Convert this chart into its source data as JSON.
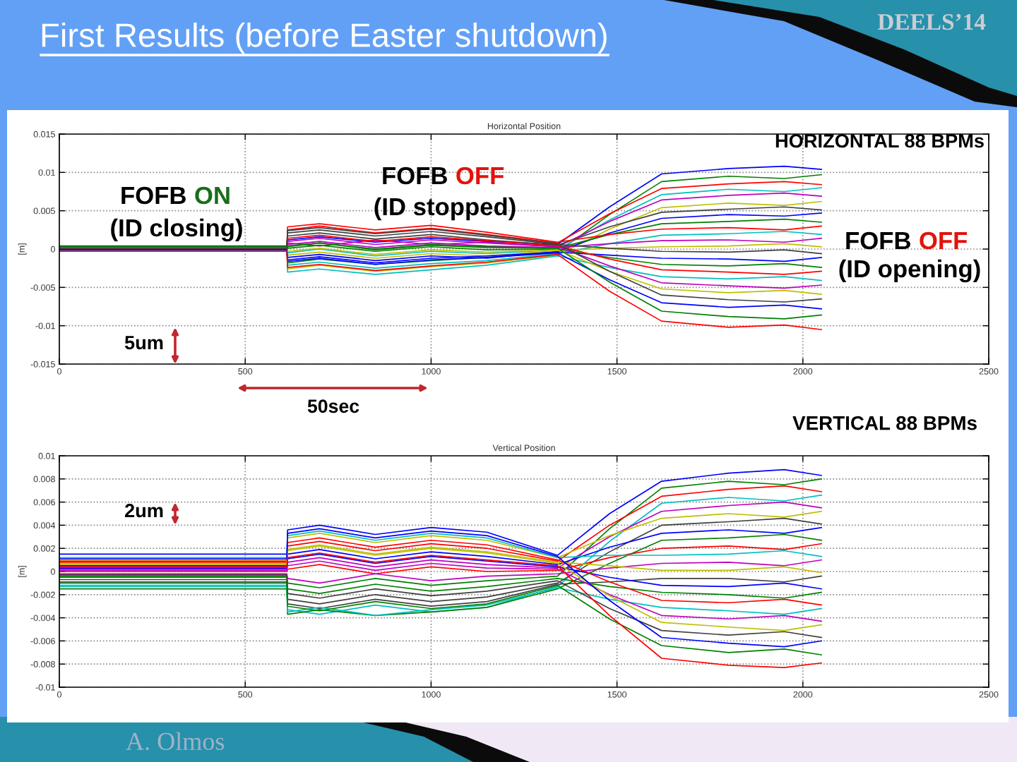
{
  "chart_data": [
    {
      "type": "line",
      "title": "Horizontal Position",
      "ylabel": "[m]",
      "xlim": [
        0,
        2500
      ],
      "ylim": [
        -0.015,
        0.015
      ],
      "xticks": [
        0,
        500,
        1000,
        1500,
        2000,
        2500
      ],
      "yticks": [
        -0.015,
        -0.01,
        -0.005,
        0,
        0.005,
        0.01,
        0.015
      ],
      "grid": true,
      "annotations": [
        "First Results (before Easter shutdown)",
        "DEELS’14",
        "HORIZONTAL 88 BPMs",
        "FOFB",
        "ON",
        "(ID closing)",
        "FOFB",
        "OFF",
        "(ID stopped)",
        "FOFB",
        "OFF",
        "(ID opening)",
        "5um",
        "50sec"
      ],
      "x": [
        0,
        612,
        614,
        700,
        850,
        1000,
        1150,
        1340,
        1480,
        1620,
        1800,
        1950,
        2050
      ],
      "series": [
        {
          "color": "#0000ff",
          "values": [
            0.0003,
            0.0003,
            0.0012,
            0.0016,
            0.0009,
            0.0014,
            0.001,
            0.0006,
            0.0055,
            0.0098,
            0.0105,
            0.0108,
            0.0104
          ]
        },
        {
          "color": "#008000",
          "values": [
            -0.0002,
            -0.0002,
            -0.0018,
            -0.0013,
            -0.002,
            -0.0015,
            -0.0011,
            -0.0004,
            0.0045,
            0.0088,
            0.0095,
            0.0092,
            0.0097
          ]
        },
        {
          "color": "#ff0000",
          "values": [
            0.0001,
            0.0001,
            0.0025,
            0.003,
            0.0021,
            0.0027,
            0.0019,
            0.0008,
            0.0046,
            0.0079,
            0.0085,
            0.0088,
            0.0084
          ]
        },
        {
          "color": "#00bfbf",
          "values": [
            -0.0001,
            -0.0001,
            -0.0005,
            0.0,
            -0.0009,
            -0.0003,
            -0.0006,
            -0.0001,
            0.0038,
            0.0071,
            0.0078,
            0.0075,
            0.008
          ]
        },
        {
          "color": "#bf00bf",
          "values": [
            0.0002,
            0.0002,
            0.0008,
            0.0004,
            0.0012,
            0.0006,
            0.0009,
            0.0003,
            0.0036,
            0.0064,
            0.007,
            0.0073,
            0.0069
          ]
        },
        {
          "color": "#bfbf00",
          "values": [
            0.0,
            0.0,
            -0.0026,
            -0.0021,
            -0.0029,
            -0.0023,
            -0.0018,
            -0.0008,
            0.0026,
            0.0054,
            0.006,
            0.0057,
            0.0062
          ]
        },
        {
          "color": "#404040",
          "values": [
            0.0004,
            0.0004,
            0.0017,
            0.0021,
            0.0013,
            0.0019,
            0.0012,
            0.0005,
            0.0029,
            0.0048,
            0.0052,
            0.0055,
            0.0051
          ]
        },
        {
          "color": "#0000ff",
          "values": [
            -0.0003,
            -0.0003,
            -0.0011,
            -0.0007,
            -0.0015,
            -0.0009,
            -0.0012,
            -0.0003,
            0.0021,
            0.004,
            0.0045,
            0.0043,
            0.0047
          ]
        },
        {
          "color": "#008000",
          "values": [
            0.0001,
            0.0001,
            0.0003,
            0.0008,
            -0.0001,
            0.0005,
            0.0002,
            0.0001,
            0.0019,
            0.0033,
            0.0036,
            0.0039,
            0.0035
          ]
        },
        {
          "color": "#ff0000",
          "values": [
            -0.0001,
            -0.0001,
            0.0029,
            0.0033,
            0.0025,
            0.0031,
            0.0022,
            0.0009,
            0.0019,
            0.0026,
            0.0028,
            0.0025,
            0.003
          ]
        },
        {
          "color": "#00bfbf",
          "values": [
            0.0002,
            0.0002,
            -0.0021,
            -0.0017,
            -0.0025,
            -0.0019,
            -0.0015,
            -0.0006,
            0.0007,
            0.0018,
            0.002,
            0.0023,
            0.0019
          ]
        },
        {
          "color": "#bf00bf",
          "values": [
            -0.0002,
            -0.0002,
            0.0006,
            0.001,
            0.0002,
            0.0008,
            0.0004,
            0.0002,
            0.0007,
            0.0011,
            0.0012,
            0.0009,
            0.0014
          ]
        },
        {
          "color": "#bfbf00",
          "values": [
            0.0,
            0.0,
            -0.0008,
            -0.0004,
            -0.0012,
            -0.0006,
            -0.0009,
            -0.0002,
            0.0001,
            0.0003,
            0.0004,
            0.0007,
            0.0003
          ]
        },
        {
          "color": "#404040",
          "values": [
            0.0003,
            0.0003,
            0.0021,
            0.0025,
            0.0017,
            0.0023,
            0.0016,
            0.0006,
            0.0001,
            -0.0003,
            -0.0004,
            -0.0001,
            -0.0006
          ]
        },
        {
          "color": "#0000ff",
          "values": [
            -0.0001,
            -0.0001,
            -0.0014,
            -0.001,
            -0.0018,
            -0.0012,
            -0.0009,
            -0.0004,
            -0.0008,
            -0.0012,
            -0.0013,
            -0.0016,
            -0.0011
          ]
        },
        {
          "color": "#008000",
          "values": [
            0.0001,
            0.0001,
            0.0001,
            0.0005,
            -0.0003,
            0.0003,
            -0.0001,
            0.0,
            -0.0011,
            -0.002,
            -0.0022,
            -0.0019,
            -0.0024
          ]
        },
        {
          "color": "#ff0000",
          "values": [
            -0.0003,
            -0.0003,
            0.0014,
            0.0018,
            0.001,
            0.0016,
            0.0011,
            0.0004,
            -0.0013,
            -0.0027,
            -0.003,
            -0.0033,
            -0.0029
          ]
        },
        {
          "color": "#00bfbf",
          "values": [
            0.0002,
            0.0002,
            -0.003,
            -0.0026,
            -0.0033,
            -0.0027,
            -0.0021,
            -0.0009,
            -0.0024,
            -0.0036,
            -0.0039,
            -0.0036,
            -0.0041
          ]
        },
        {
          "color": "#bf00bf",
          "values": [
            0.0,
            0.0,
            0.001,
            0.0014,
            0.0006,
            0.0012,
            0.0008,
            0.0003,
            -0.0022,
            -0.0044,
            -0.0048,
            -0.0051,
            -0.0047
          ]
        },
        {
          "color": "#bfbf00",
          "values": [
            -0.0002,
            -0.0002,
            -0.0003,
            0.0001,
            -0.0007,
            -0.0001,
            -0.0004,
            -0.0001,
            -0.0029,
            -0.0052,
            -0.0057,
            -0.0054,
            -0.0059
          ]
        },
        {
          "color": "#404040",
          "values": [
            0.0001,
            0.0001,
            0.0024,
            0.0028,
            0.002,
            0.0026,
            0.0018,
            0.0007,
            -0.0029,
            -0.006,
            -0.0066,
            -0.0069,
            -0.0065
          ]
        },
        {
          "color": "#0000ff",
          "values": [
            -0.0001,
            -0.0001,
            -0.0016,
            -0.0012,
            -0.002,
            -0.0014,
            -0.0011,
            -0.0005,
            -0.004,
            -0.007,
            -0.0076,
            -0.0073,
            -0.0078
          ]
        },
        {
          "color": "#008000",
          "values": [
            0.0003,
            0.0003,
            0.0004,
            0.0008,
            0.0,
            0.0006,
            0.0003,
            0.0001,
            -0.0043,
            -0.0081,
            -0.0088,
            -0.0091,
            -0.0086
          ]
        },
        {
          "color": "#ff0000",
          "values": [
            -0.0003,
            -0.0003,
            -0.0024,
            -0.002,
            -0.0028,
            -0.0022,
            -0.0017,
            -0.0007,
            -0.0055,
            -0.0094,
            -0.0102,
            -0.0099,
            -0.0105
          ]
        }
      ]
    },
    {
      "type": "line",
      "title": "Vertical Position",
      "ylabel": "[m]",
      "xlim": [
        0,
        2500
      ],
      "ylim": [
        -0.01,
        0.01
      ],
      "xticks": [
        0,
        500,
        1000,
        1500,
        2000,
        2500
      ],
      "yticks": [
        -0.01,
        -0.008,
        -0.006,
        -0.004,
        -0.002,
        0,
        0.002,
        0.004,
        0.006,
        0.008,
        0.01
      ],
      "grid": true,
      "annotations": [
        "VERTICAL 88 BPMs",
        "2um",
        "A. Olmos"
      ],
      "x": [
        0,
        612,
        614,
        700,
        850,
        1000,
        1150,
        1340,
        1480,
        1620,
        1800,
        1950,
        2050
      ],
      "series": [
        {
          "color": "#0000ff",
          "values": [
            0.0015,
            0.0015,
            0.0036,
            0.004,
            0.0032,
            0.0038,
            0.0034,
            0.0014,
            0.005,
            0.0078,
            0.0085,
            0.0088,
            0.0083
          ]
        },
        {
          "color": "#008000",
          "values": [
            -0.0004,
            -0.0004,
            -0.001,
            -0.0014,
            -0.0006,
            -0.0012,
            -0.0008,
            -0.0004,
            0.0037,
            0.0072,
            0.0078,
            0.0075,
            0.008
          ]
        },
        {
          "color": "#ff0000",
          "values": [
            0.0008,
            0.0008,
            0.0022,
            0.0026,
            0.0018,
            0.0024,
            0.002,
            0.0009,
            0.004,
            0.0065,
            0.0071,
            0.0074,
            0.0069
          ]
        },
        {
          "color": "#00bfbf",
          "values": [
            -0.0012,
            -0.0012,
            -0.0033,
            -0.0037,
            -0.0029,
            -0.0035,
            -0.0031,
            -0.0013,
            0.0026,
            0.0059,
            0.0064,
            0.0061,
            0.0066
          ]
        },
        {
          "color": "#bf00bf",
          "values": [
            0.0002,
            0.0002,
            0.0008,
            0.0012,
            0.0004,
            0.001,
            0.0006,
            0.0003,
            0.003,
            0.0052,
            0.0057,
            0.006,
            0.0055
          ]
        },
        {
          "color": "#bfbf00",
          "values": [
            0.001,
            0.001,
            0.0029,
            0.0033,
            0.0025,
            0.0031,
            0.0027,
            0.0012,
            0.0031,
            0.0046,
            0.005,
            0.0047,
            0.0052
          ]
        },
        {
          "color": "#404040",
          "values": [
            -0.0007,
            -0.0007,
            -0.0024,
            -0.0028,
            -0.002,
            -0.0026,
            -0.0022,
            -0.001,
            0.0017,
            0.004,
            0.0043,
            0.0046,
            0.0041
          ]
        },
        {
          "color": "#0000ff",
          "values": [
            0.0005,
            0.0005,
            0.0015,
            0.0019,
            0.0011,
            0.0017,
            0.0013,
            0.0006,
            0.0021,
            0.0033,
            0.0036,
            0.0033,
            0.0038
          ]
        },
        {
          "color": "#008000",
          "values": [
            -0.0015,
            -0.0015,
            -0.0037,
            -0.0033,
            -0.0038,
            -0.0035,
            -0.0031,
            -0.0015,
            0.0007,
            0.0027,
            0.0029,
            0.0032,
            0.0027
          ]
        },
        {
          "color": "#ff0000",
          "values": [
            0.0,
            0.0,
            0.0002,
            0.0006,
            -0.0002,
            0.0004,
            0.0,
            0.0001,
            0.0012,
            0.002,
            0.0022,
            0.0019,
            0.0024
          ]
        },
        {
          "color": "#00bfbf",
          "values": [
            0.0012,
            0.0012,
            0.0031,
            0.0035,
            0.0027,
            0.0033,
            0.0029,
            0.0012,
            0.0014,
            0.0014,
            0.0015,
            0.0018,
            0.0013
          ]
        },
        {
          "color": "#bf00bf",
          "values": [
            -0.0002,
            -0.0002,
            -0.0006,
            -0.001,
            -0.0002,
            -0.0008,
            -0.0004,
            -0.0002,
            0.0003,
            0.0007,
            0.0008,
            0.0005,
            0.001
          ]
        },
        {
          "color": "#bfbf00",
          "values": [
            0.0006,
            0.0006,
            0.0019,
            0.0023,
            0.0015,
            0.0021,
            0.0017,
            0.0008,
            0.0005,
            0.0001,
            0.0001,
            0.0004,
            -0.0001
          ]
        },
        {
          "color": "#404040",
          "values": [
            -0.0009,
            -0.0009,
            -0.0028,
            -0.0032,
            -0.0024,
            -0.003,
            -0.0026,
            -0.0011,
            -0.0009,
            -0.0006,
            -0.0006,
            -0.0009,
            -0.0004
          ]
        },
        {
          "color": "#0000ff",
          "values": [
            0.0003,
            0.0003,
            0.0011,
            0.0015,
            0.0007,
            0.0013,
            0.0009,
            0.0004,
            -0.0005,
            -0.0012,
            -0.0013,
            -0.001,
            -0.0015
          ]
        },
        {
          "color": "#008000",
          "values": [
            -0.0005,
            -0.0005,
            -0.0015,
            -0.0019,
            -0.0011,
            -0.0017,
            -0.0013,
            -0.0006,
            -0.0013,
            -0.0018,
            -0.002,
            -0.0023,
            -0.0018
          ]
        },
        {
          "color": "#ff0000",
          "values": [
            0.0009,
            0.0009,
            0.0025,
            0.0029,
            0.0021,
            0.0027,
            0.0023,
            0.001,
            -0.0009,
            -0.0025,
            -0.0027,
            -0.0024,
            -0.0029
          ]
        },
        {
          "color": "#00bfbf",
          "values": [
            -0.0013,
            -0.0013,
            -0.0035,
            -0.0031,
            -0.0038,
            -0.0033,
            -0.0029,
            -0.0014,
            -0.0024,
            -0.0031,
            -0.0034,
            -0.0037,
            -0.0032
          ]
        },
        {
          "color": "#bf00bf",
          "values": [
            0.0001,
            0.0001,
            0.0005,
            0.0009,
            0.0001,
            0.0007,
            0.0003,
            0.0002,
            -0.002,
            -0.0038,
            -0.0041,
            -0.0038,
            -0.0043
          ]
        },
        {
          "color": "#bfbf00",
          "values": [
            0.0007,
            0.0007,
            0.0018,
            0.0022,
            0.0014,
            0.002,
            0.0016,
            0.0007,
            -0.0021,
            -0.0044,
            -0.0048,
            -0.0051,
            -0.0046
          ]
        },
        {
          "color": "#404040",
          "values": [
            -0.0003,
            -0.0003,
            -0.0019,
            -0.0023,
            -0.0015,
            -0.0021,
            -0.0017,
            -0.0008,
            -0.0032,
            -0.0051,
            -0.0055,
            -0.0052,
            -0.0057
          ]
        },
        {
          "color": "#0000ff",
          "values": [
            0.0011,
            0.0011,
            0.0033,
            0.0037,
            0.0029,
            0.0035,
            0.0031,
            0.0013,
            -0.0025,
            -0.0057,
            -0.0062,
            -0.0065,
            -0.006
          ]
        },
        {
          "color": "#008000",
          "values": [
            -0.001,
            -0.001,
            -0.003,
            -0.0034,
            -0.0026,
            -0.0032,
            -0.0028,
            -0.0012,
            -0.0041,
            -0.0064,
            -0.007,
            -0.0067,
            -0.0072
          ]
        },
        {
          "color": "#ff0000",
          "values": [
            0.0004,
            0.0004,
            0.0012,
            0.0016,
            0.0008,
            0.0014,
            0.001,
            0.0005,
            -0.0038,
            -0.0075,
            -0.0081,
            -0.0083,
            -0.0079
          ]
        }
      ]
    }
  ]
}
